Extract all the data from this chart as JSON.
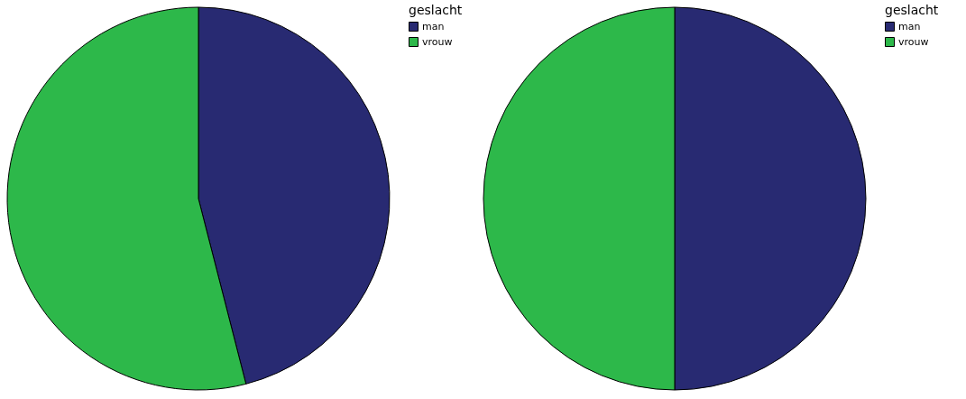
{
  "chart_data": [
    {
      "type": "pie",
      "categories": [
        "man",
        "vrouw"
      ],
      "values": [
        46,
        54
      ],
      "colors": [
        "#282a72",
        "#2db84a"
      ],
      "legend_title": "geslacht",
      "legend": "top right"
    },
    {
      "type": "pie",
      "categories": [
        "man",
        "vrouw"
      ],
      "values": [
        50,
        50
      ],
      "colors": [
        "#282a72",
        "#2db84a"
      ],
      "legend_title": "geslacht",
      "legend": "top right"
    }
  ]
}
